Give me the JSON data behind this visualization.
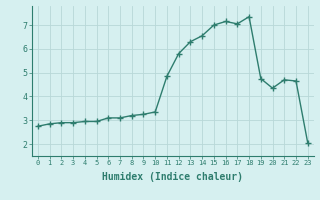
{
  "x": [
    0,
    1,
    2,
    3,
    4,
    5,
    6,
    7,
    8,
    9,
    10,
    11,
    12,
    13,
    14,
    15,
    16,
    17,
    18,
    19,
    20,
    21,
    22,
    23
  ],
  "y": [
    2.75,
    2.85,
    2.9,
    2.9,
    2.95,
    2.95,
    3.1,
    3.1,
    3.2,
    3.25,
    3.35,
    4.85,
    5.8,
    6.3,
    6.55,
    7.0,
    7.15,
    7.05,
    7.35,
    4.75,
    4.35,
    4.7,
    4.65,
    2.05
  ],
  "line_color": "#2e7d6e",
  "marker": "+",
  "markersize": 4,
  "linewidth": 1.0,
  "markeredgewidth": 1.0,
  "xlabel": "Humidex (Indice chaleur)",
  "xlabel_fontsize": 7,
  "bg_color": "#d6f0f0",
  "grid_color": "#b8d8d8",
  "tick_color": "#2e7d6e",
  "xlim": [
    -0.5,
    23.5
  ],
  "ylim": [
    1.5,
    7.8
  ],
  "yticks": [
    2,
    3,
    4,
    5,
    6,
    7
  ],
  "xticks": [
    0,
    1,
    2,
    3,
    4,
    5,
    6,
    7,
    8,
    9,
    10,
    11,
    12,
    13,
    14,
    15,
    16,
    17,
    18,
    19,
    20,
    21,
    22,
    23
  ],
  "tick_fontsize": 5,
  "ytick_fontsize": 6
}
